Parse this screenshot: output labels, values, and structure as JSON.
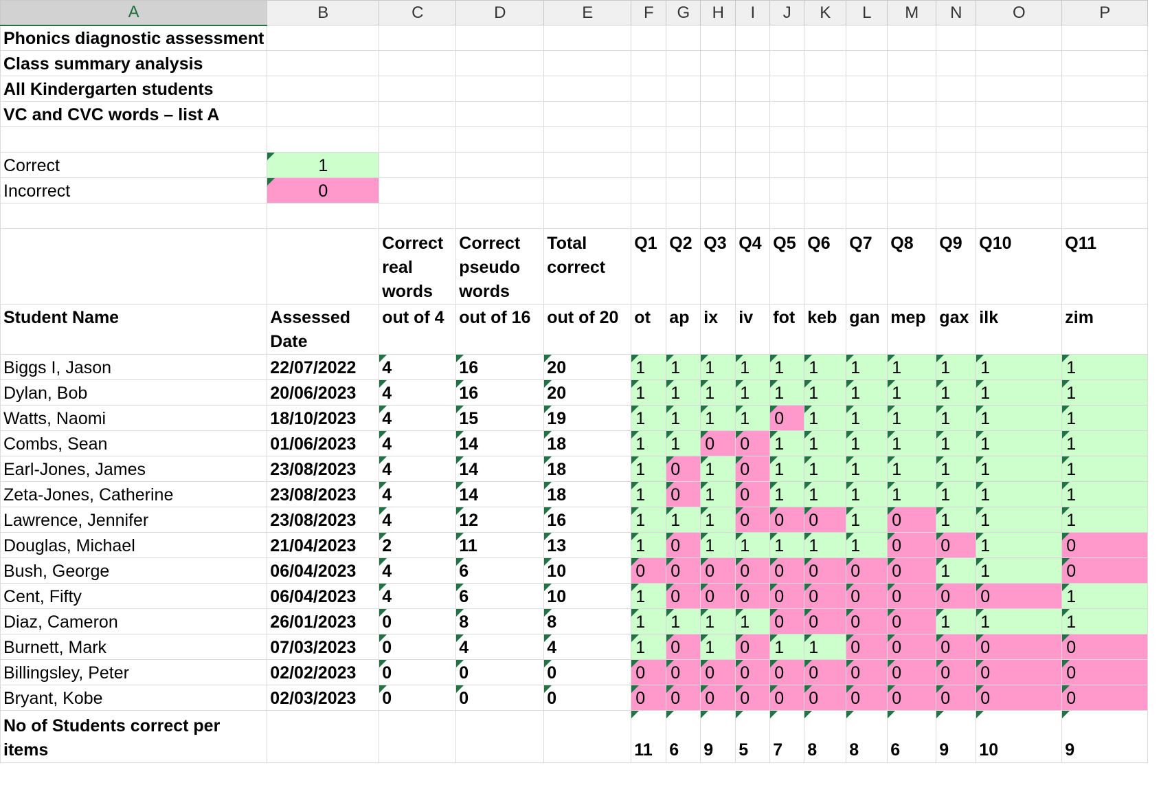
{
  "columns": [
    "A",
    "B",
    "C",
    "D",
    "E",
    "F",
    "G",
    "H",
    "I",
    "J",
    "K",
    "L",
    "M",
    "N",
    "O",
    "P"
  ],
  "title_lines": [
    "Phonics diagnostic assessment",
    "Class summary analysis",
    "All Kindergarten students",
    "VC and CVC words – list A"
  ],
  "legend": {
    "correct_label": "Correct",
    "correct_value": "1",
    "correct_color": "#ccffcc",
    "incorrect_label": "Incorrect",
    "incorrect_value": "0",
    "incorrect_color": "#ff99cc"
  },
  "header": {
    "correct_real": "Correct real words",
    "correct_pseudo": "Correct pseudo words",
    "total_correct": "Total correct",
    "questions": [
      "Q1",
      "Q2",
      "Q3",
      "Q4",
      "Q5",
      "Q6",
      "Q7",
      "Q8",
      "Q9",
      "Q10",
      "Q11"
    ],
    "student_name": "Student Name",
    "assessed_date": "Assessed Date",
    "out_of_4": "out of 4",
    "out_of_16": "out of 16",
    "out_of_20": "out of 20",
    "words": [
      "ot",
      "ap",
      "ix",
      "iv",
      "fot",
      "keb",
      "gan",
      "mep",
      "gax",
      "ilk",
      "zim"
    ]
  },
  "students": [
    {
      "name": "Biggs I, Jason",
      "date": "22/07/2022",
      "real": "4",
      "pseudo": "16",
      "total": "20",
      "answers": [
        "1",
        "1",
        "1",
        "1",
        "1",
        "1",
        "1",
        "1",
        "1",
        "1",
        "1"
      ]
    },
    {
      "name": "Dylan, Bob",
      "date": "20/06/2023",
      "real": "4",
      "pseudo": "16",
      "total": "20",
      "answers": [
        "1",
        "1",
        "1",
        "1",
        "1",
        "1",
        "1",
        "1",
        "1",
        "1",
        "1"
      ]
    },
    {
      "name": "Watts, Naomi",
      "date": "18/10/2023",
      "real": "4",
      "pseudo": "15",
      "total": "19",
      "answers": [
        "1",
        "1",
        "1",
        "1",
        "0",
        "1",
        "1",
        "1",
        "1",
        "1",
        "1"
      ]
    },
    {
      "name": "Combs, Sean",
      "date": "01/06/2023",
      "real": "4",
      "pseudo": "14",
      "total": "18",
      "answers": [
        "1",
        "1",
        "0",
        "0",
        "1",
        "1",
        "1",
        "1",
        "1",
        "1",
        "1"
      ]
    },
    {
      "name": "Earl-Jones, James",
      "date": "23/08/2023",
      "real": "4",
      "pseudo": "14",
      "total": "18",
      "answers": [
        "1",
        "0",
        "1",
        "0",
        "1",
        "1",
        "1",
        "1",
        "1",
        "1",
        "1"
      ]
    },
    {
      "name": "Zeta-Jones, Catherine",
      "date": "23/08/2023",
      "real": "4",
      "pseudo": "14",
      "total": "18",
      "answers": [
        "1",
        "0",
        "1",
        "0",
        "1",
        "1",
        "1",
        "1",
        "1",
        "1",
        "1"
      ]
    },
    {
      "name": "Lawrence, Jennifer",
      "date": "23/08/2023",
      "real": "4",
      "pseudo": "12",
      "total": "16",
      "answers": [
        "1",
        "1",
        "1",
        "0",
        "0",
        "0",
        "1",
        "0",
        "1",
        "1",
        "1"
      ]
    },
    {
      "name": "Douglas, Michael",
      "date": "21/04/2023",
      "real": "2",
      "pseudo": "11",
      "total": "13",
      "answers": [
        "1",
        "0",
        "1",
        "1",
        "1",
        "1",
        "1",
        "0",
        "0",
        "1",
        "0"
      ]
    },
    {
      "name": "Bush, George",
      "date": "06/04/2023",
      "real": "4",
      "pseudo": "6",
      "total": "10",
      "answers": [
        "0",
        "0",
        "0",
        "0",
        "0",
        "0",
        "0",
        "0",
        "1",
        "1",
        "0"
      ]
    },
    {
      "name": "Cent, Fifty",
      "date": "06/04/2023",
      "real": "4",
      "pseudo": "6",
      "total": "10",
      "answers": [
        "1",
        "0",
        "0",
        "0",
        "0",
        "0",
        "0",
        "0",
        "0",
        "0",
        "1"
      ]
    },
    {
      "name": "Diaz, Cameron",
      "date": "26/01/2023",
      "real": "0",
      "pseudo": "8",
      "total": "8",
      "answers": [
        "1",
        "1",
        "1",
        "1",
        "0",
        "0",
        "0",
        "0",
        "1",
        "1",
        "1"
      ]
    },
    {
      "name": "Burnett, Mark",
      "date": "07/03/2023",
      "real": "0",
      "pseudo": "4",
      "total": "4",
      "answers": [
        "1",
        "0",
        "1",
        "0",
        "1",
        "1",
        "0",
        "0",
        "0",
        "0",
        "0"
      ]
    },
    {
      "name": "Billingsley, Peter",
      "date": "02/02/2023",
      "real": "0",
      "pseudo": "0",
      "total": "0",
      "answers": [
        "0",
        "0",
        "0",
        "0",
        "0",
        "0",
        "0",
        "0",
        "0",
        "0",
        "0"
      ]
    },
    {
      "name": "Bryant, Kobe",
      "date": "02/03/2023",
      "real": "0",
      "pseudo": "0",
      "total": "0",
      "answers": [
        "0",
        "0",
        "0",
        "0",
        "0",
        "0",
        "0",
        "0",
        "0",
        "0",
        "0"
      ]
    }
  ],
  "footer": {
    "label": "No of Students correct per items",
    "counts": [
      "11",
      "6",
      "9",
      "5",
      "7",
      "8",
      "8",
      "6",
      "9",
      "10",
      "9"
    ]
  }
}
